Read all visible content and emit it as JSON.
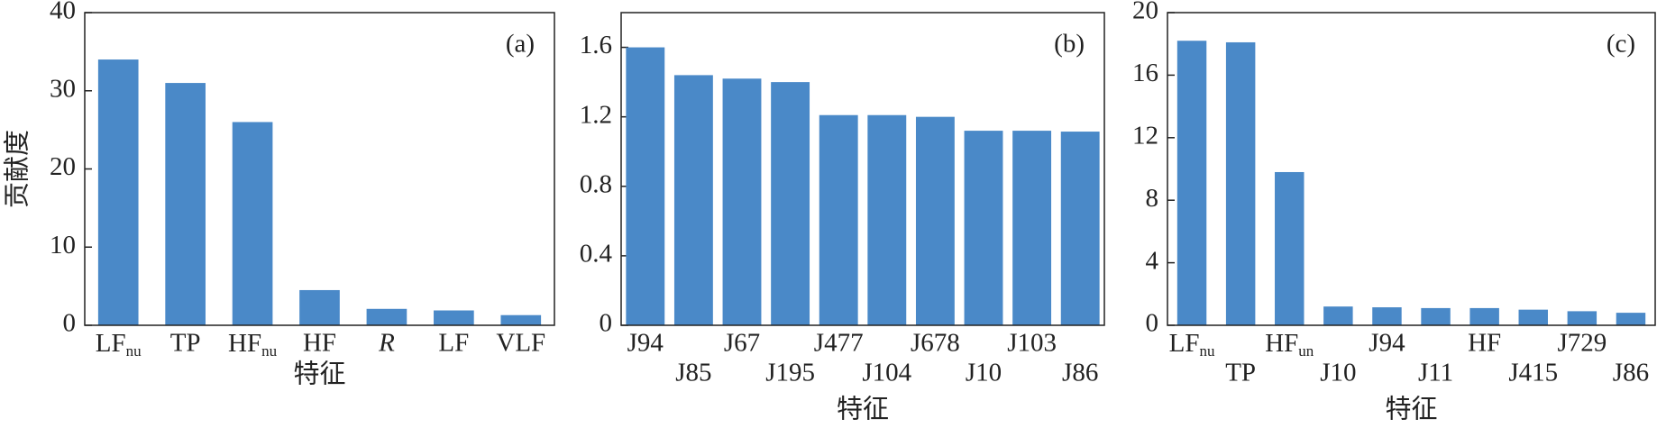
{
  "chart_data": [
    {
      "type": "bar",
      "annotation": "(a)",
      "ylabel": "贡献度",
      "xlabel": "特征",
      "categories": [
        "LFnu",
        "TP",
        "HFnu",
        "HF",
        "R",
        "LF",
        "VLF"
      ],
      "values": [
        34,
        31,
        26,
        4.5,
        2.1,
        1.9,
        1.3
      ],
      "color": "#4a89c8",
      "ylim": [
        0,
        40
      ],
      "yticks": [
        0,
        10,
        20,
        30,
        40
      ]
    },
    {
      "type": "bar",
      "annotation": "(b)",
      "xlabel": "特征",
      "categories": [
        "J94",
        "J85",
        "J67",
        "J195",
        "J477",
        "J104",
        "J678",
        "J10",
        "J103",
        "J86"
      ],
      "values": [
        1.6,
        1.44,
        1.42,
        1.4,
        1.21,
        1.21,
        1.2,
        1.12,
        1.12,
        1.115
      ],
      "color": "#4a89c8",
      "ylim": [
        0,
        1.8
      ],
      "yticks": [
        0,
        0.4,
        0.8,
        1.2,
        1.6
      ]
    },
    {
      "type": "bar",
      "annotation": "(c)",
      "xlabel": "特征",
      "categories": [
        "LFnu",
        "TP",
        "HFun",
        "J10",
        "J94",
        "J11",
        "HF",
        "J415",
        "J729",
        "J86"
      ],
      "values": [
        18.2,
        18.1,
        9.8,
        1.2,
        1.15,
        1.1,
        1.1,
        1.0,
        0.9,
        0.8
      ],
      "color": "#4a89c8",
      "ylim": [
        0,
        20
      ],
      "yticks": [
        0,
        4,
        8,
        12,
        16,
        20
      ]
    }
  ]
}
